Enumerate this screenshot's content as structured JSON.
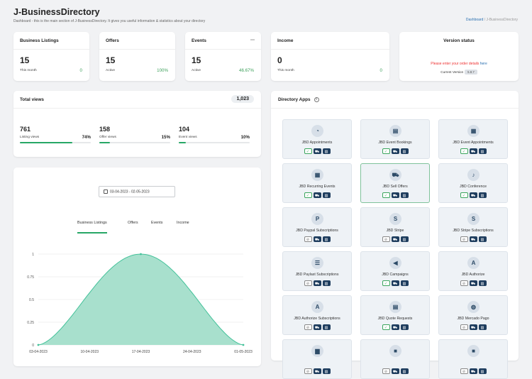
{
  "header": {
    "title": "J-BusinessDirectory",
    "subtitle": "Dashboard - this is the main section of J-BusinessDirectory. It gives you useful information & statistics about your directory",
    "crumb_home": "Dashboard",
    "crumb_sep": "/",
    "crumb_current": "J-BusinessDirectory"
  },
  "stats": [
    {
      "title": "Business Listings",
      "value": "15",
      "label": "This month",
      "pct": "0"
    },
    {
      "title": "Offers",
      "value": "15",
      "label": "Active",
      "pct": "100%"
    },
    {
      "title": "Events",
      "value": "15",
      "label": "Active",
      "pct": "46.67%"
    },
    {
      "title": "Income",
      "value": "0",
      "label": "This month",
      "pct": "0"
    }
  ],
  "version": {
    "title": "Version status",
    "warn": "Please enter your order details",
    "warn_link": "here",
    "label": "Current Version",
    "number": "5.8.7"
  },
  "total_views": {
    "title": "Total views",
    "total": "1,023",
    "metrics": [
      {
        "value": "761",
        "label": "Listing views",
        "pct": "74%",
        "fraction": 0.74
      },
      {
        "value": "158",
        "label": "Offer views",
        "pct": "15%",
        "fraction": 0.15
      },
      {
        "value": "104",
        "label": "Event views",
        "pct": "10%",
        "fraction": 0.1
      }
    ]
  },
  "chart_panel": {
    "date_range": "03-04-2023 - 02-05-2023",
    "tabs": [
      "Business Listings",
      "Offers",
      "Events",
      "Income"
    ],
    "active_tab": "Business Listings"
  },
  "chart_data": {
    "type": "area",
    "x": [
      "03-04-2023",
      "10-04-2023",
      "17-04-2023",
      "24-04-2023",
      "01-05-2023"
    ],
    "ylim": [
      0,
      1
    ],
    "yticks": [
      "0",
      "0.25",
      "0.5",
      "0.75",
      "1"
    ],
    "series": [
      {
        "values": [
          0,
          0.55,
          1,
          0.55,
          0
        ]
      }
    ],
    "colors": {
      "fill": "#a8e0cd",
      "line": "#44c29a"
    }
  },
  "apps_panel": {
    "title": "Directory Apps",
    "items": [
      {
        "name": "JBD Appointments",
        "icon": "clock-icon",
        "glyph": "◔",
        "status": "installed"
      },
      {
        "name": "JBD Event Bookings",
        "icon": "ticket-icon",
        "glyph": "▤",
        "status": "installed"
      },
      {
        "name": "JBD Event Appointments",
        "icon": "calendar-icon",
        "glyph": "▦",
        "status": "installed"
      },
      {
        "name": "JBD Recurring Events",
        "icon": "calendar-repeat-icon",
        "glyph": "▦",
        "status": "installed"
      },
      {
        "name": "JBD Sell Offers",
        "icon": "cart-icon",
        "glyph": "⛟",
        "status": "installed"
      },
      {
        "name": "JBD Conference",
        "icon": "microphone-icon",
        "glyph": "♪",
        "status": "installed"
      },
      {
        "name": "JBD Paypal Subscriptions",
        "icon": "paypal-icon",
        "glyph": "P",
        "status": "not-installed"
      },
      {
        "name": "JBD Stripe",
        "icon": "stripe-icon",
        "glyph": "S",
        "status": "not-installed"
      },
      {
        "name": "JBD Stripe Subscriptions",
        "icon": "stripe-subscriptions-icon",
        "glyph": "S",
        "status": "not-installed"
      },
      {
        "name": "JBD Paylast Subscriptions",
        "icon": "coins-icon",
        "glyph": "☰",
        "status": "not-installed"
      },
      {
        "name": "JBD Campaigns",
        "icon": "megaphone-icon",
        "glyph": "◀",
        "status": "installed"
      },
      {
        "name": "JBD Authorize",
        "icon": "authorize-icon",
        "glyph": "A",
        "status": "not-installed"
      },
      {
        "name": "JBD Authorize Subscriptions",
        "icon": "authorize-subscriptions-icon",
        "glyph": "A",
        "status": "not-installed"
      },
      {
        "name": "JBD Quote Requests",
        "icon": "document-icon",
        "glyph": "▤",
        "status": "installed"
      },
      {
        "name": "JBD Mercado Pago",
        "icon": "mercadopago-icon",
        "glyph": "◍",
        "status": "not-installed"
      },
      {
        "name": "",
        "icon": "bus-icon",
        "glyph": "▆",
        "status": "partial"
      },
      {
        "name": "",
        "icon": "video-icon",
        "glyph": "■",
        "status": "partial"
      },
      {
        "name": "",
        "icon": "video-call-icon",
        "glyph": "■",
        "status": "partial"
      }
    ]
  }
}
